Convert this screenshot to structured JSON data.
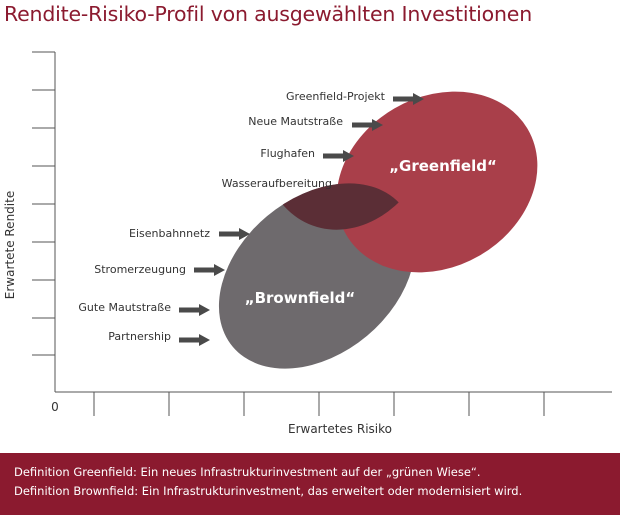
{
  "title": "Rendite-Risiko-Profil von ausgewählten Investitionen",
  "axes": {
    "x_label": "Erwartetes Risiko",
    "y_label": "Erwartete Rendite",
    "origin_label": "0"
  },
  "regions": {
    "greenfield": {
      "label": "„Greenfield“",
      "color": "#a93f4a"
    },
    "brownfield": {
      "label": "„Brownfield“",
      "color": "#6e6a6d"
    },
    "overlap_color": "#5b2e36"
  },
  "investments": [
    {
      "label": "Greenfield-Projekt",
      "group": "greenfield",
      "arrow": true
    },
    {
      "label": "Neue Mautstraße",
      "group": "greenfield",
      "arrow": true
    },
    {
      "label": "Flughafen",
      "group": "greenfield",
      "arrow": true
    },
    {
      "label": "Wasseraufbereitung",
      "group": "overlap",
      "arrow": false
    },
    {
      "label": "Eisenbahnnetz",
      "group": "brownfield",
      "arrow": true
    },
    {
      "label": "Stromerzeugung",
      "group": "brownfield",
      "arrow": true
    },
    {
      "label": "Gute Mautstraße",
      "group": "brownfield",
      "arrow": true
    },
    {
      "label": "Partnership",
      "group": "brownfield",
      "arrow": true
    }
  ],
  "footer": {
    "line1": "Definition Greenfield: Ein neues Infrastrukturinvestment auf der „grünen Wiese“.",
    "line2": "Definition Brownfield: Ein Infrastrukturinvestment, das erweitert oder modernisiert wird."
  },
  "colors": {
    "accent": "#8b1a2f",
    "arrow": "#4a4a4a",
    "axis": "#555555",
    "text": "#333333"
  }
}
